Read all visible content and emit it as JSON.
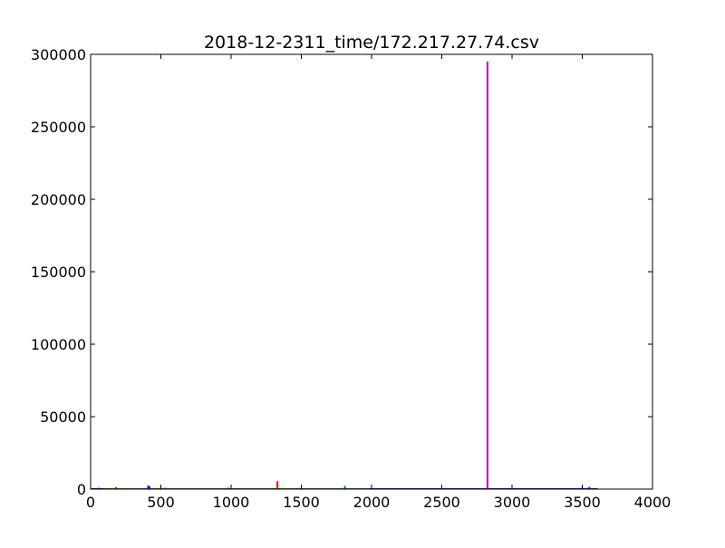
{
  "chart_data": {
    "type": "line",
    "title": "2018-12-2311_time/172.217.27.74.csv",
    "xlabel": "",
    "ylabel": "",
    "xlim": [
      0,
      4000
    ],
    "ylim": [
      0,
      300000
    ],
    "x_ticks": [
      0,
      500,
      1000,
      1500,
      2000,
      2500,
      3000,
      3500,
      4000
    ],
    "y_ticks": [
      0,
      50000,
      100000,
      150000,
      200000,
      250000,
      300000
    ],
    "x_tick_labels": [
      "0",
      "500",
      "1000",
      "1500",
      "2000",
      "2500",
      "3000",
      "3500",
      "4000"
    ],
    "y_tick_labels": [
      "0",
      "50000",
      "100000",
      "150000",
      "200000",
      "250000",
      "300000"
    ],
    "grid": false,
    "legend": "none",
    "series": [
      {
        "color": "#0000ff",
        "points": [
          [
            0,
            0
          ],
          [
            60,
            900
          ],
          [
            180,
            1200
          ],
          [
            410,
            2500
          ],
          [
            420,
            1800
          ],
          [
            980,
            900
          ],
          [
            2100,
            600
          ],
          [
            2400,
            500
          ],
          [
            2700,
            600
          ],
          [
            3100,
            500
          ],
          [
            3300,
            700
          ],
          [
            3500,
            900
          ],
          [
            3550,
            1500
          ],
          [
            3610,
            0
          ]
        ]
      },
      {
        "color": "#008000",
        "points": [
          [
            100,
            600
          ],
          [
            250,
            500
          ],
          [
            530,
            900
          ],
          [
            640,
            400
          ],
          [
            760,
            500
          ],
          [
            870,
            400
          ],
          [
            1050,
            700
          ],
          [
            1100,
            600
          ],
          [
            1200,
            500
          ],
          [
            1400,
            400
          ],
          [
            1600,
            500
          ],
          [
            1700,
            400
          ],
          [
            1810,
            2200
          ],
          [
            1980,
            600
          ]
        ]
      },
      {
        "color": "#ff0000",
        "points": [
          [
            1330,
            5500
          ]
        ]
      },
      {
        "color": "#bf00bf",
        "points": [
          [
            2825,
            295000
          ]
        ]
      }
    ]
  }
}
